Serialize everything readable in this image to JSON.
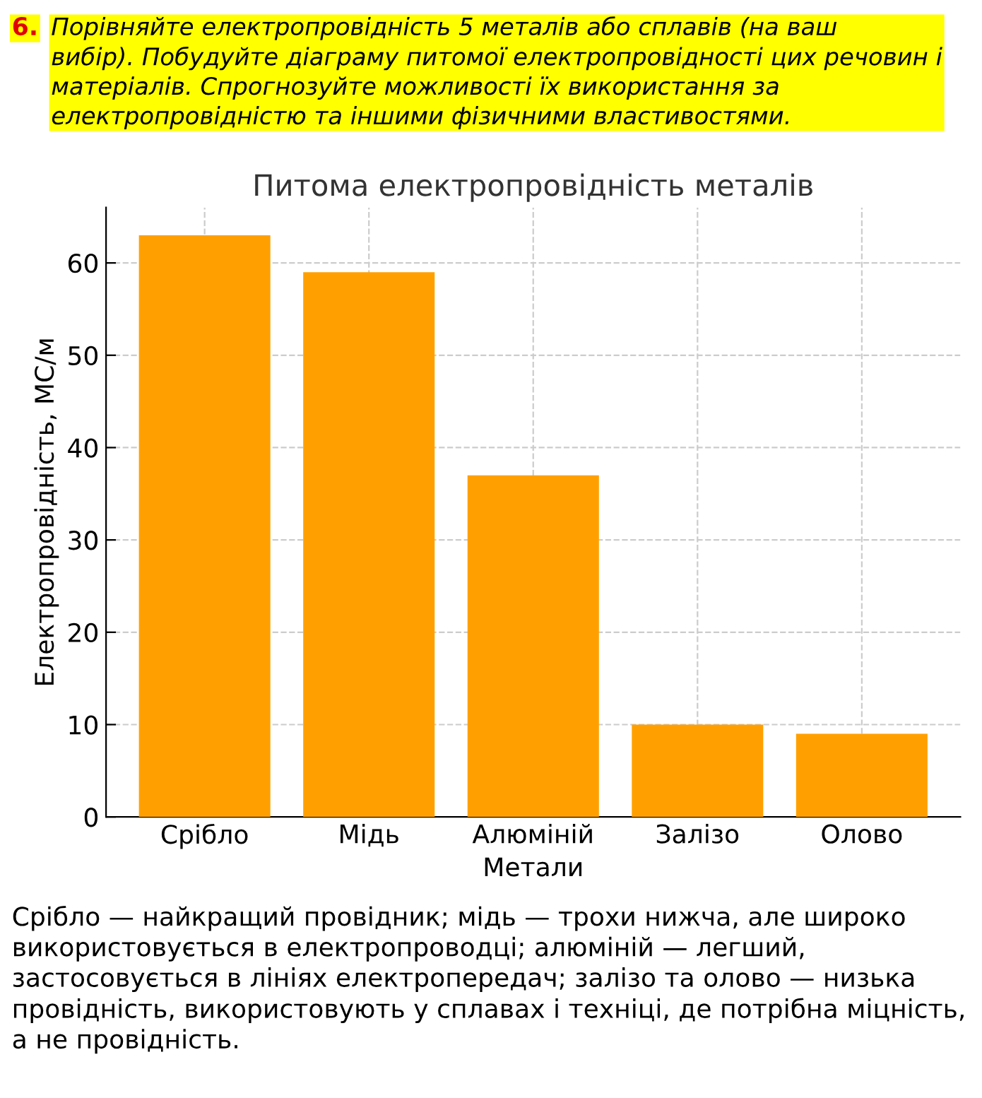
{
  "chart_data": {
    "type": "bar",
    "title": "Питома електропровідність металів",
    "xlabel": "Метали",
    "ylabel": "Електропровідність, МС/м",
    "categories": [
      "Срібло",
      "Мідь",
      "Алюміній",
      "Залізо",
      "Олово"
    ],
    "values": [
      63,
      59,
      37,
      10,
      9
    ],
    "color": "#ffa000",
    "ylim": [
      0,
      66
    ],
    "yticks": [
      0,
      10,
      20,
      30,
      40,
      50,
      60
    ],
    "grid": true,
    "annotations": [
      "6.",
      "Порівняйте електропровідність 5 металів або сплавів (на ваш\nвибір). Побудуйте діаграму питомої електропровідності цих речовин і\nматеріалів. Спрогнозуйте можливості їх використання за\nелектропровідністю та іншими фізичними властивостями.",
      "Срібло — найкращий провідник; мідь — трохи нижча, але широко\nвикористовується в електропроводці; алюміній — легший,\nзастосовується в лініях електропередач; залізо та олово — низька\nпровідність, використовують у сплавах і техніці, де потрібна міцність,\nа не провідність."
    ]
  }
}
